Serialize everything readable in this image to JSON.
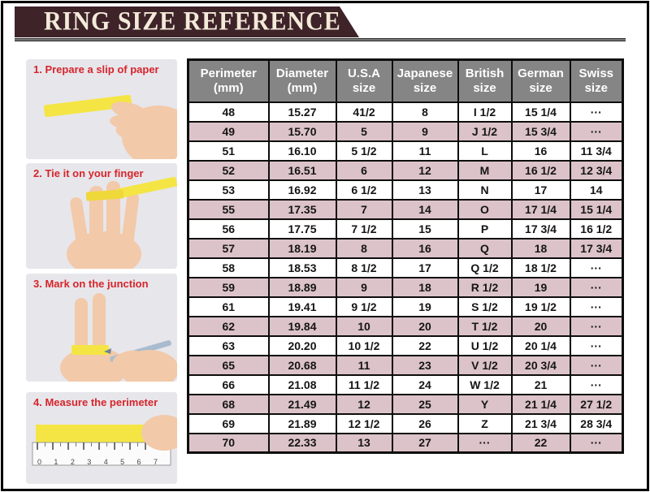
{
  "header": {
    "title": "RING SIZE REFERENCE"
  },
  "steps": [
    {
      "label": "1. Prepare a slip of paper"
    },
    {
      "label": "2. Tie it on your finger"
    },
    {
      "label": "3. Mark on the junction"
    },
    {
      "label": "4. Measure the perimeter",
      "ruler_labels": [
        "0",
        "1",
        "2",
        "3",
        "4",
        "5",
        "6",
        "7"
      ]
    }
  ],
  "table": {
    "columns": [
      {
        "label": "Perimeter",
        "sub": "(mm)"
      },
      {
        "label": "Diameter",
        "sub": "(mm)"
      },
      {
        "label": "U.S.A",
        "sub": "size"
      },
      {
        "label": "Japanese",
        "sub": "size"
      },
      {
        "label": "British",
        "sub": "size"
      },
      {
        "label": "German",
        "sub": "size"
      },
      {
        "label": "Swiss",
        "sub": "size"
      }
    ],
    "rows": [
      [
        "48",
        "15.27",
        "41/2",
        "8",
        "I 1/2",
        "15 1/4",
        "···"
      ],
      [
        "49",
        "15.70",
        "5",
        "9",
        "J 1/2",
        "15 3/4",
        "···"
      ],
      [
        "51",
        "16.10",
        "5 1/2",
        "11",
        "L",
        "16",
        "11 3/4"
      ],
      [
        "52",
        "16.51",
        "6",
        "12",
        "M",
        "16 1/2",
        "12 3/4"
      ],
      [
        "53",
        "16.92",
        "6 1/2",
        "13",
        "N",
        "17",
        "14"
      ],
      [
        "55",
        "17.35",
        "7",
        "14",
        "O",
        "17 1/4",
        "15 1/4"
      ],
      [
        "56",
        "17.75",
        "7 1/2",
        "15",
        "P",
        "17 3/4",
        "16 1/2"
      ],
      [
        "57",
        "18.19",
        "8",
        "16",
        "Q",
        "18",
        "17 3/4"
      ],
      [
        "58",
        "18.53",
        "8 1/2",
        "17",
        "Q 1/2",
        "18 1/2",
        "···"
      ],
      [
        "59",
        "18.89",
        "9",
        "18",
        "R 1/2",
        "19",
        "···"
      ],
      [
        "61",
        "19.41",
        "9 1/2",
        "19",
        "S 1/2",
        "19 1/2",
        "···"
      ],
      [
        "62",
        "19.84",
        "10",
        "20",
        "T 1/2",
        "20",
        "···"
      ],
      [
        "63",
        "20.20",
        "10 1/2",
        "22",
        "U 1/2",
        "20 1/4",
        "···"
      ],
      [
        "65",
        "20.68",
        "11",
        "23",
        "V 1/2",
        "20 3/4",
        "···"
      ],
      [
        "66",
        "21.08",
        "11 1/2",
        "24",
        "W 1/2",
        "21",
        "···"
      ],
      [
        "68",
        "21.49",
        "12",
        "25",
        "Y",
        "21 1/4",
        "27 1/2"
      ],
      [
        "69",
        "21.89",
        "12 1/2",
        "26",
        "Z",
        "21 3/4",
        "28 3/4"
      ],
      [
        "70",
        "22.33",
        "13",
        "27",
        "···",
        "22",
        "···"
      ]
    ]
  },
  "colors": {
    "banner_bg": "#3e2329",
    "banner_text": "#f3ead9",
    "table_header_bg": "#858585",
    "row_pink": "#dcc3c9",
    "step_title_red": "#d6252b",
    "paper_yellow": "#f4e544",
    "skin": "#f2c9a9"
  }
}
